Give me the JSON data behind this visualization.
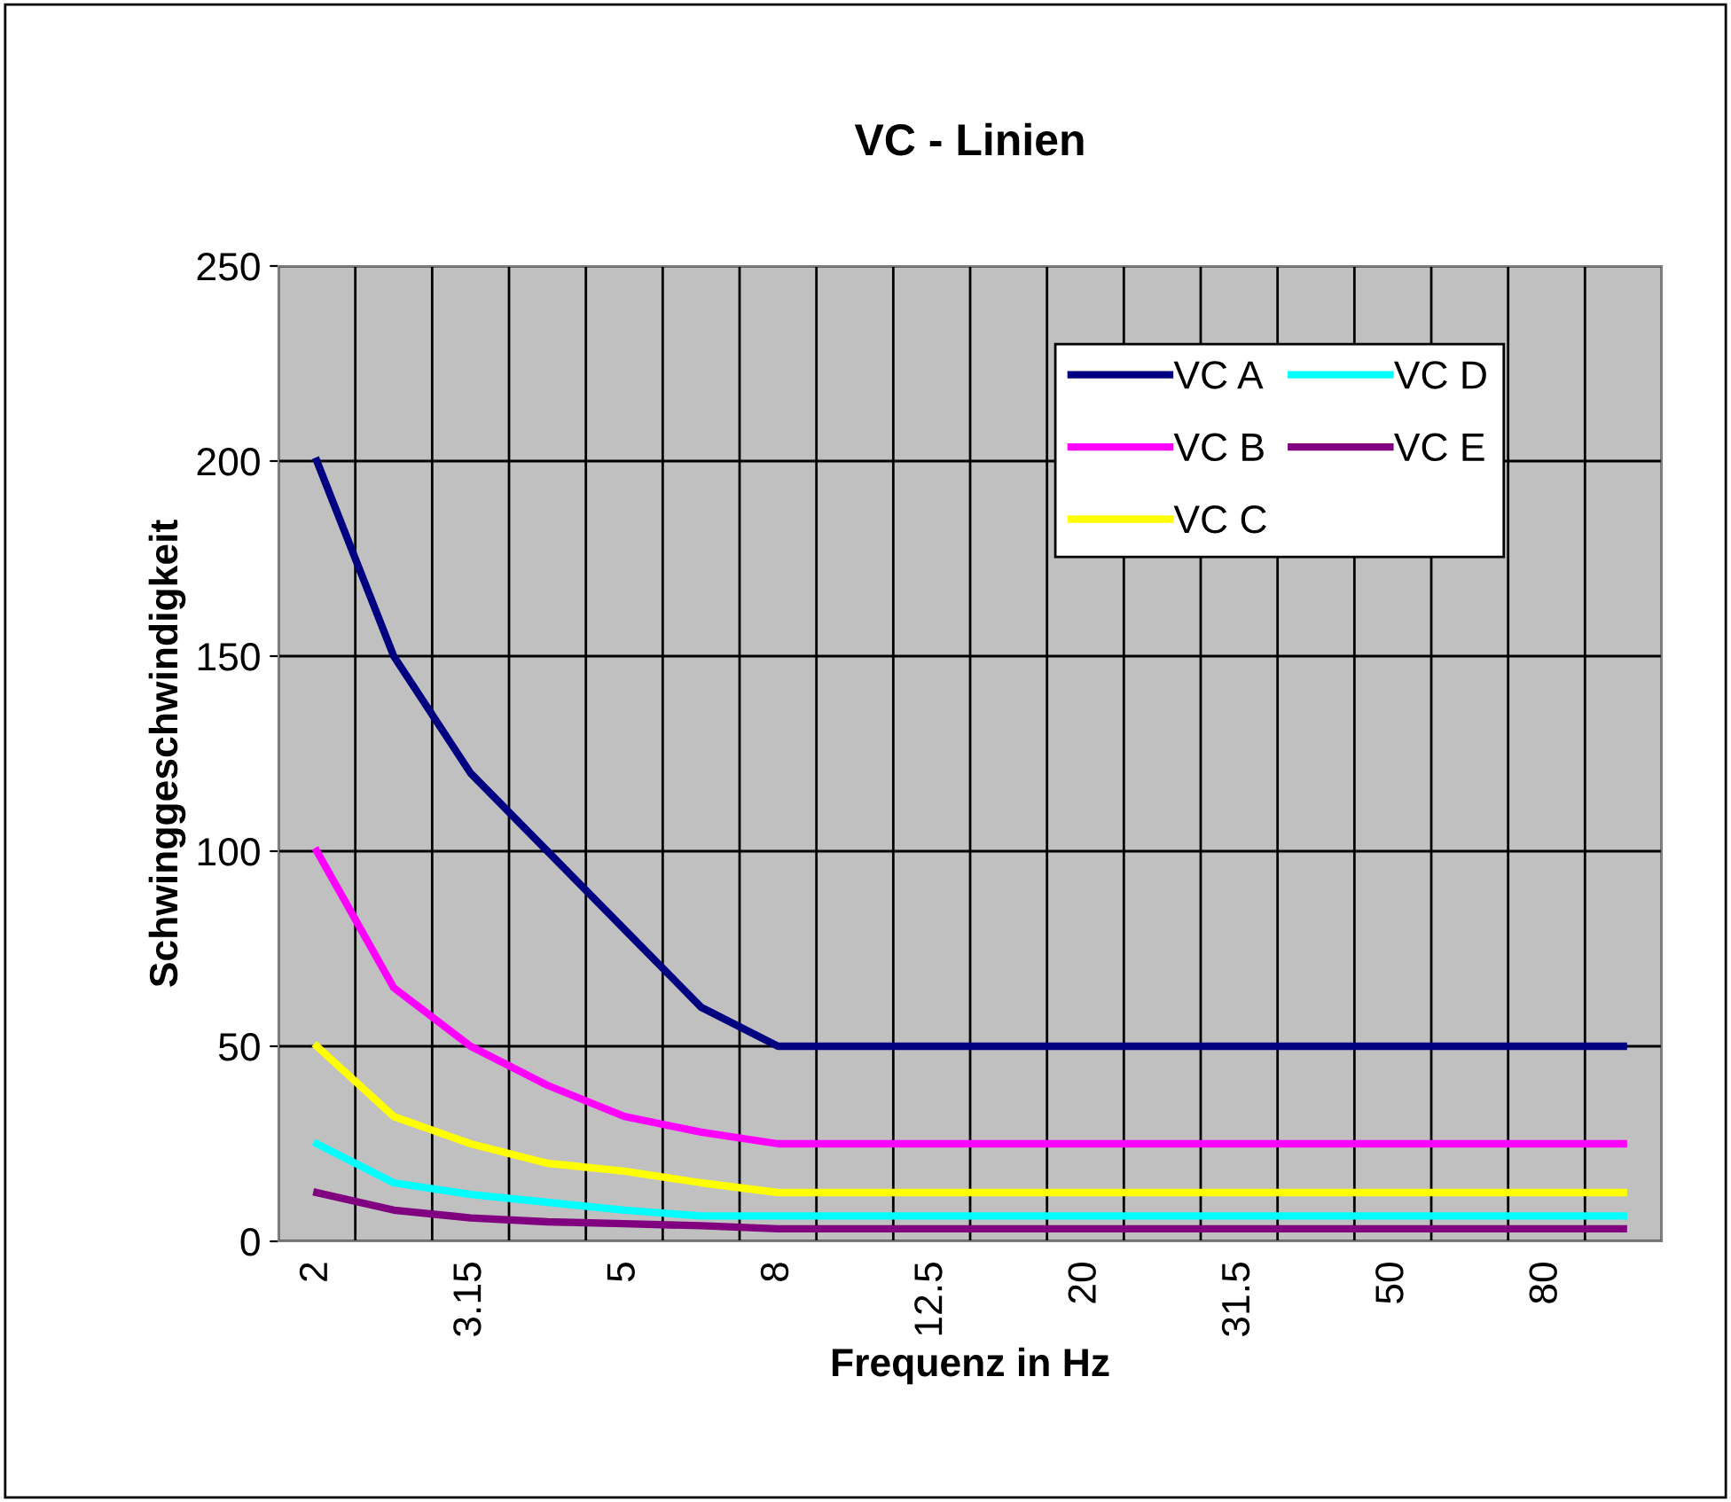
{
  "chart_data": {
    "type": "line",
    "title": "VC - Linien",
    "xlabel": "Frequenz in Hz",
    "ylabel": "Schwinggeschwindigkeit",
    "categories": [
      "2",
      null,
      "3.15",
      null,
      "5",
      null,
      "8",
      null,
      "12.5",
      null,
      "20",
      null,
      "31.5",
      null,
      "50",
      null,
      "80",
      null
    ],
    "series": [
      {
        "name": "VC A",
        "color": "#000080",
        "values": [
          200,
          150,
          120,
          100,
          80,
          60,
          50,
          50,
          50,
          50,
          50,
          50,
          50,
          50,
          50,
          50,
          50,
          50
        ]
      },
      {
        "name": "VC B",
        "color": "#ff00ff",
        "values": [
          100,
          65,
          50,
          40,
          32,
          28,
          25,
          25,
          25,
          25,
          25,
          25,
          25,
          25,
          25,
          25,
          25,
          25
        ]
      },
      {
        "name": "VC C",
        "color": "#ffff00",
        "values": [
          50,
          32,
          25,
          20,
          18,
          15,
          12.5,
          12.5,
          12.5,
          12.5,
          12.5,
          12.5,
          12.5,
          12.5,
          12.5,
          12.5,
          12.5,
          12.5
        ]
      },
      {
        "name": "VC D",
        "color": "#00ffff",
        "values": [
          25,
          15,
          12,
          10,
          8,
          6.5,
          6.5,
          6.5,
          6.5,
          6.5,
          6.5,
          6.5,
          6.5,
          6.5,
          6.5,
          6.5,
          6.5,
          6.5
        ]
      },
      {
        "name": "VC E",
        "color": "#800080",
        "values": [
          12.5,
          8,
          6,
          5,
          4.5,
          4,
          3.2,
          3.2,
          3.2,
          3.2,
          3.2,
          3.2,
          3.2,
          3.2,
          3.2,
          3.2,
          3.2,
          3.2
        ]
      }
    ],
    "ylim": [
      0,
      250
    ],
    "yticks": [
      0,
      50,
      100,
      150,
      200,
      250
    ],
    "grid": true,
    "legend": "top right",
    "marker": "none",
    "line_style": "solid"
  }
}
